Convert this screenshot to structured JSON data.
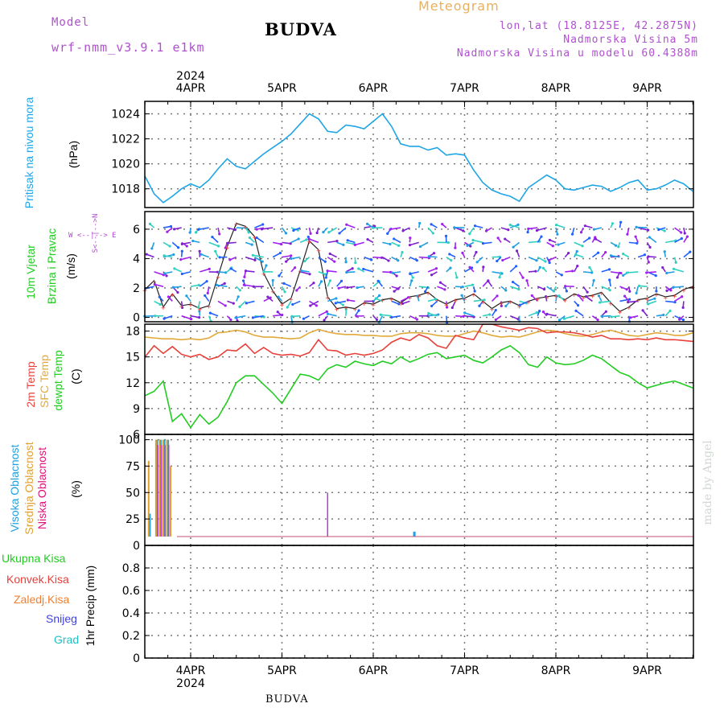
{
  "header": {
    "model_label": "Model",
    "model_name": "wrf-nmm_v3.9.1  e1km",
    "title": "BUDVA",
    "meteogram_label": "Meteogram",
    "lonlat": "lon,lat (18.8125E, 42.2875N)",
    "elevation": "Nadmorska Visina 5m",
    "model_elevation": "Nadmorska Visina u modelu 60.4388m",
    "footer_station": "BUDVA",
    "credit": "made by Angel"
  },
  "axis_top": {
    "year": "2024",
    "dates": [
      "4APR",
      "5APR",
      "6APR",
      "7APR",
      "8APR",
      "9APR"
    ]
  },
  "axis_bottom": {
    "year": "2024",
    "dates": [
      "4APR",
      "5APR",
      "6APR",
      "7APR",
      "8APR",
      "9APR"
    ]
  },
  "panel_labels": {
    "pressure": {
      "name": "Pritisak na nivou mora",
      "unit": "(hPa)"
    },
    "wind": {
      "name1": "10m Vjetar",
      "name2": "Brzina i Pravac",
      "unit": "(m/s)",
      "compass_ns": "S<--|-->N",
      "compass_we": "W <--|--> E"
    },
    "temp": {
      "t2m": "2m Temp",
      "sfc": "SFC Temp",
      "dew": "dewpt Temp",
      "unit": "(C)"
    },
    "cloud": {
      "high": "Visoka Oblacnost",
      "mid": "Srednja Oblacnost",
      "low": "Niska Oblacnost",
      "unit": "(%)"
    },
    "precip": {
      "total": "Ukupna Kisa",
      "conv": "Konvek.Kisa",
      "frozen": "Zaledj.Kisa",
      "snow": "Snijeg",
      "graupel": "Grad",
      "unit": "1hr Precip (mm)"
    }
  },
  "colors": {
    "pressure": "#1fa5e6",
    "t2m": "#e8403a",
    "sfc": "#e0a93a",
    "dew": "#22cc22",
    "cloud_high": "#1fa0e0",
    "cloud_mid": "#e0a030",
    "cloud_low": "#b040d0",
    "precip_total": "#22cc22",
    "precip_conv": "#e8403a",
    "precip_frozen": "#f08030",
    "precip_snow": "#4040e0",
    "precip_graupel": "#20c0c0",
    "model_text": "#b050d0",
    "meteogram_text": "#e8b060",
    "credit": "#d0d8d0"
  },
  "chart_data": [
    {
      "type": "line",
      "panel": "pressure",
      "ylim": [
        1016.5,
        1025
      ],
      "yticks": [
        1018,
        1020,
        1022,
        1024
      ],
      "x_unit": "days since 4APR 00UTC",
      "series": [
        {
          "name": "Pritisak na nivou mora",
          "x": [
            -0.5,
            -0.4,
            -0.3,
            -0.2,
            -0.1,
            0.0,
            0.1,
            0.2,
            0.3,
            0.4,
            0.5,
            0.6,
            0.7,
            0.8,
            0.9,
            1.0,
            1.1,
            1.2,
            1.3,
            1.4,
            1.5,
            1.6,
            1.7,
            1.8,
            1.9,
            2.0,
            2.1,
            2.2,
            2.3,
            2.4,
            2.5,
            2.6,
            2.7,
            2.8,
            2.9,
            3.0,
            3.1,
            3.2,
            3.3,
            3.4,
            3.5,
            3.6,
            3.7,
            3.8,
            3.9,
            4.0,
            4.1,
            4.2,
            4.3,
            4.4,
            4.5,
            4.6,
            4.7,
            4.8,
            4.9,
            5.0,
            5.1,
            5.2,
            5.3,
            5.4,
            5.5
          ],
          "values": [
            1019.0,
            1017.6,
            1016.9,
            1017.4,
            1018.0,
            1018.4,
            1018.1,
            1018.7,
            1019.6,
            1020.4,
            1019.8,
            1019.6,
            1020.2,
            1020.8,
            1021.3,
            1021.8,
            1022.4,
            1023.2,
            1024.0,
            1023.6,
            1022.6,
            1022.5,
            1023.1,
            1023.0,
            1022.8,
            1023.4,
            1024.0,
            1023.0,
            1021.6,
            1021.4,
            1021.4,
            1021.1,
            1021.3,
            1020.7,
            1020.8,
            1020.7,
            1019.5,
            1018.5,
            1017.9,
            1017.6,
            1017.4,
            1017.0,
            1018.1,
            1018.6,
            1019.1,
            1018.7,
            1018.0,
            1017.9,
            1018.1,
            1018.3,
            1018.2,
            1017.8,
            1018.1,
            1018.5,
            1018.7,
            1017.9,
            1018.0,
            1018.3,
            1018.7,
            1018.4,
            1017.8
          ]
        }
      ]
    },
    {
      "type": "scatter",
      "panel": "wind",
      "ylim": [
        -0.3,
        7.2
      ],
      "yticks": [
        0,
        2,
        4,
        6
      ],
      "x_unit": "days since 4APR 00UTC",
      "series": [
        {
          "name": "Brzina",
          "x": [
            -0.5,
            -0.4,
            -0.3,
            -0.2,
            -0.1,
            0.0,
            0.1,
            0.2,
            0.3,
            0.4,
            0.5,
            0.6,
            0.7,
            0.8,
            0.9,
            1.0,
            1.1,
            1.2,
            1.3,
            1.4,
            1.5,
            1.6,
            1.7,
            1.8,
            1.9,
            2.0,
            2.1,
            2.2,
            2.3,
            2.4,
            2.5,
            2.6,
            2.7,
            2.8,
            2.9,
            3.0,
            3.1,
            3.2,
            3.3,
            3.4,
            3.5,
            3.6,
            3.7,
            3.8,
            3.9,
            4.0,
            4.1,
            4.2,
            4.3,
            4.4,
            4.5,
            4.6,
            4.7,
            4.8,
            4.9,
            5.0,
            5.1,
            5.2,
            5.3,
            5.4,
            5.5
          ],
          "values": [
            1.9,
            2.5,
            0.7,
            1.6,
            0.8,
            0.9,
            0.6,
            0.8,
            2.8,
            4.8,
            6.4,
            6.2,
            5.5,
            3.0,
            1.8,
            0.9,
            1.3,
            3.2,
            5.2,
            4.6,
            1.4,
            0.6,
            0.7,
            0.6,
            1.0,
            0.9,
            1.2,
            1.3,
            1.0,
            1.4,
            1.5,
            1.7,
            1.2,
            0.9,
            1.2,
            1.3,
            1.6,
            1.1,
            0.6,
            1.0,
            1.1,
            0.8,
            1.1,
            1.3,
            1.4,
            1.5,
            1.2,
            1.6,
            1.4,
            1.5,
            1.7,
            1.0,
            0.4,
            0.7,
            1.2,
            1.3,
            1.6,
            1.4,
            1.5,
            1.9,
            2.1
          ]
        }
      ]
    },
    {
      "type": "line",
      "panel": "temp",
      "ylim": [
        6,
        18.8
      ],
      "yticks": [
        6,
        9,
        12,
        15,
        18
      ],
      "x_unit": "days since 4APR 00UTC",
      "series": [
        {
          "name": "2m Temp",
          "x": [
            -0.5,
            -0.4,
            -0.3,
            -0.2,
            -0.1,
            0.0,
            0.1,
            0.2,
            0.3,
            0.4,
            0.5,
            0.6,
            0.7,
            0.8,
            0.9,
            1.0,
            1.1,
            1.2,
            1.3,
            1.4,
            1.5,
            1.6,
            1.7,
            1.8,
            1.9,
            2.0,
            2.1,
            2.2,
            2.3,
            2.4,
            2.5,
            2.6,
            2.7,
            2.8,
            2.9,
            3.0,
            3.1,
            3.2,
            3.3,
            3.4,
            3.5,
            3.6,
            3.7,
            3.8,
            3.9,
            4.0,
            4.1,
            4.2,
            4.3,
            4.4,
            4.5,
            4.6,
            4.7,
            4.8,
            4.9,
            5.0,
            5.1,
            5.2,
            5.3,
            5.4,
            5.5
          ],
          "values": [
            15.0,
            16.3,
            15.4,
            16.2,
            15.3,
            15.0,
            15.3,
            14.7,
            15.0,
            15.8,
            15.7,
            16.5,
            15.4,
            16.1,
            15.4,
            15.2,
            15.3,
            15.1,
            15.5,
            17.0,
            15.8,
            15.7,
            15.2,
            15.4,
            15.2,
            15.4,
            15.8,
            16.7,
            17.2,
            16.9,
            17.6,
            17.2,
            16.3,
            16.0,
            17.5,
            17.2,
            17.0,
            19.0,
            19.2,
            18.5,
            18.3,
            18.1,
            18.4,
            18.3,
            17.8,
            17.9,
            17.9,
            17.8,
            17.6,
            17.3,
            17.5,
            17.1,
            17.1,
            17.0,
            17.1,
            17.0,
            17.2,
            17.0,
            17.0,
            16.9,
            16.8
          ]
        },
        {
          "name": "SFC Temp",
          "x": [
            -0.5,
            -0.4,
            -0.3,
            -0.2,
            -0.1,
            0.0,
            0.1,
            0.2,
            0.3,
            0.4,
            0.5,
            0.6,
            0.7,
            0.8,
            0.9,
            1.0,
            1.1,
            1.2,
            1.3,
            1.4,
            1.5,
            1.6,
            1.7,
            1.8,
            1.9,
            2.0,
            2.1,
            2.2,
            2.3,
            2.4,
            2.5,
            2.6,
            2.7,
            2.8,
            2.9,
            3.0,
            3.1,
            3.2,
            3.3,
            3.4,
            3.5,
            3.6,
            3.7,
            3.8,
            3.9,
            4.0,
            4.1,
            4.2,
            4.3,
            4.4,
            4.5,
            4.6,
            4.7,
            4.8,
            4.9,
            5.0,
            5.1,
            5.2,
            5.3,
            5.4,
            5.5
          ],
          "values": [
            17.3,
            17.2,
            17.1,
            17.1,
            17.0,
            17.1,
            17.0,
            17.2,
            17.8,
            17.9,
            18.1,
            17.9,
            17.5,
            17.3,
            17.3,
            17.2,
            17.1,
            17.2,
            17.8,
            18.2,
            17.9,
            17.7,
            17.6,
            17.6,
            17.5,
            17.5,
            17.4,
            17.4,
            17.7,
            17.8,
            17.8,
            17.7,
            17.5,
            17.4,
            17.4,
            17.7,
            18.0,
            17.8,
            17.5,
            17.3,
            17.4,
            17.3,
            17.6,
            17.9,
            18.1,
            18.0,
            17.7,
            17.5,
            17.4,
            17.6,
            17.9,
            18.1,
            17.8,
            17.5,
            17.4,
            17.6,
            17.8,
            17.7,
            17.5,
            17.5,
            17.8
          ]
        },
        {
          "name": "dewpt Temp",
          "x": [
            -0.5,
            -0.4,
            -0.3,
            -0.2,
            -0.1,
            0.0,
            0.1,
            0.2,
            0.3,
            0.4,
            0.5,
            0.6,
            0.7,
            0.8,
            0.9,
            1.0,
            1.1,
            1.2,
            1.3,
            1.4,
            1.5,
            1.6,
            1.7,
            1.8,
            1.9,
            2.0,
            2.1,
            2.2,
            2.3,
            2.4,
            2.5,
            2.6,
            2.7,
            2.8,
            2.9,
            3.0,
            3.1,
            3.2,
            3.3,
            3.4,
            3.5,
            3.6,
            3.7,
            3.8,
            3.9,
            4.0,
            4.1,
            4.2,
            4.3,
            4.4,
            4.5,
            4.6,
            4.7,
            4.8,
            4.9,
            5.0,
            5.1,
            5.2,
            5.3,
            5.4,
            5.5
          ],
          "values": [
            10.5,
            11.0,
            12.2,
            7.5,
            8.4,
            6.8,
            8.3,
            7.2,
            8.0,
            9.8,
            12.0,
            12.8,
            12.8,
            11.8,
            10.8,
            9.6,
            11.3,
            13.0,
            12.8,
            12.3,
            13.6,
            14.1,
            13.8,
            14.5,
            14.2,
            14.0,
            14.5,
            14.2,
            15.0,
            14.4,
            14.8,
            15.3,
            15.5,
            14.8,
            15.0,
            15.2,
            14.6,
            14.3,
            15.0,
            15.8,
            16.3,
            15.5,
            14.1,
            13.8,
            15.0,
            14.3,
            14.1,
            14.2,
            14.6,
            15.2,
            14.8,
            14.0,
            13.2,
            12.8,
            12.0,
            11.4,
            11.7,
            12.0,
            12.2,
            11.8,
            11.4
          ]
        }
      ]
    },
    {
      "type": "bar",
      "panel": "cloud",
      "ylim": [
        0,
        105
      ],
      "yticks": [
        0,
        25,
        50,
        75,
        100
      ],
      "x_unit": "days since 4APR 00UTC",
      "series": [
        {
          "name": "Visoka Oblacnost",
          "x": [
            -0.45,
            -0.37,
            -0.33,
            -0.29,
            -0.25,
            -0.21,
            1.4,
            2.45
          ],
          "values": [
            30,
            100,
            100,
            100,
            100,
            0,
            0,
            13
          ]
        },
        {
          "name": "Srednja Oblacnost",
          "x": [
            -0.46,
            -0.38,
            -0.34,
            -0.3,
            -0.26,
            -0.22,
            -0.18
          ],
          "values": [
            80,
            100,
            100,
            100,
            100,
            75,
            8
          ]
        },
        {
          "name": "Niska Oblacnost",
          "x": [
            -0.44,
            -0.36,
            -0.32,
            -0.28,
            -0.24,
            1.5
          ],
          "values": [
            0,
            95,
            95,
            95,
            95,
            50
          ]
        }
      ]
    },
    {
      "type": "bar",
      "panel": "precip",
      "ylim": [
        0,
        1.0
      ],
      "yticks": [
        0,
        0.2,
        0.4,
        0.6,
        0.8
      ],
      "series": [
        {
          "name": "Ukupna Kisa",
          "values": []
        },
        {
          "name": "Konvek.Kisa",
          "values": []
        },
        {
          "name": "Zaledj.Kisa",
          "values": []
        },
        {
          "name": "Snijeg",
          "values": []
        },
        {
          "name": "Grad",
          "values": []
        }
      ]
    }
  ]
}
